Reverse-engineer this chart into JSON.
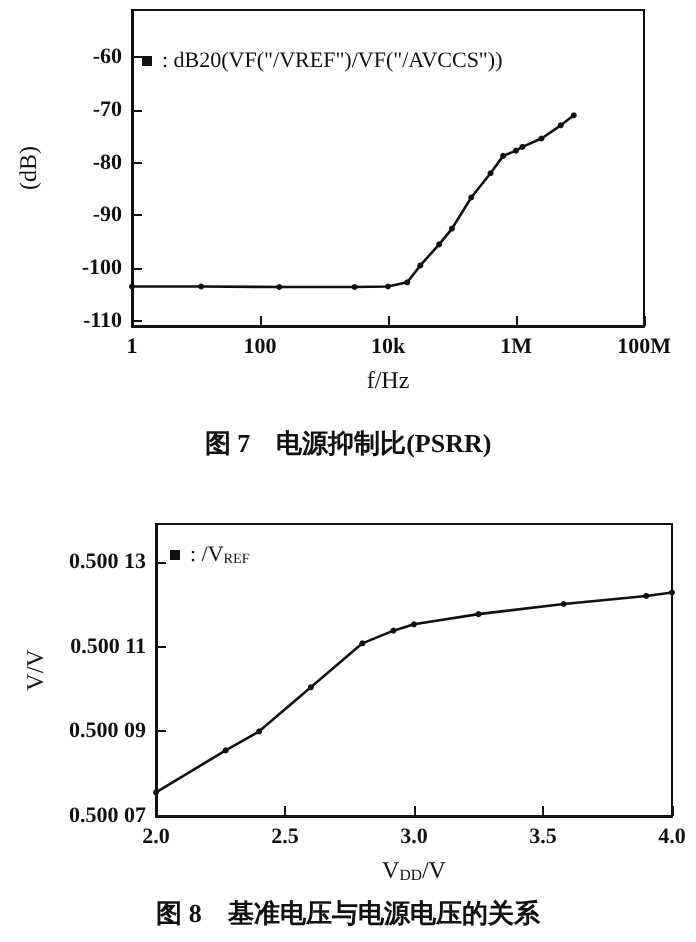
{
  "chart_data": [
    {
      "type": "line",
      "title": "图 7　电源抑制比(PSRR)",
      "xlabel": "f/Hz",
      "ylabel": "(dB)",
      "log": "x",
      "legend": "top left",
      "grid": false,
      "marker": "circle",
      "line_style": "solid",
      "xlim": [
        1,
        100000000
      ],
      "xticks": [
        1,
        100,
        {
          "value": 10000,
          "label": "10k"
        },
        {
          "value": 1000000,
          "label": "1M"
        },
        {
          "value": 100000000,
          "label": "100M"
        }
      ],
      "ylim": [
        -111,
        -51
      ],
      "yticks": [
        -110,
        -100,
        -90,
        -80,
        -70,
        -60
      ],
      "series": [
        {
          "name": ": dB20(VF(\"/VREF\")/VF(\"/AVCCS\"))",
          "color": "#111111",
          "x": [
            1,
            12,
            200,
            3000,
            10000,
            20000,
            32000,
            63000,
            100000,
            200000,
            400000,
            630000,
            1000000,
            1260000,
            2500000,
            5000000,
            8000000
          ],
          "values": [
            -103.5,
            -103.5,
            -103.6,
            -103.6,
            -103.5,
            -102.7,
            -99.5,
            -95.5,
            -92.5,
            -86.6,
            -82,
            -78.7,
            -77.7,
            -77,
            -75.4,
            -72.9,
            -71
          ]
        }
      ]
    },
    {
      "type": "line",
      "title": "图 8　基准电压与电源电压的关系",
      "xlabel": "V$_{DD}$/V",
      "ylabel": "V/V",
      "legend": "top left",
      "grid": false,
      "marker": "circle",
      "line_style": "solid",
      "xlim": [
        2.0,
        4.0
      ],
      "xticks": [
        {
          "value": 2,
          "label": "2.0"
        },
        2.5,
        {
          "value": 3,
          "label": "3.0"
        },
        3.5,
        {
          "value": 4,
          "label": "4.0"
        }
      ],
      "ylim": [
        0.50007,
        0.500139
      ],
      "yticks": [
        0.50007,
        0.50009,
        0.50011,
        0.50013
      ],
      "series": [
        {
          "name": ": /V$_{REF}$",
          "color": "#111111",
          "x": [
            2.0,
            2.27,
            2.4,
            2.6,
            2.8,
            2.92,
            3.0,
            3.25,
            3.58,
            3.9,
            4.0
          ],
          "values": [
            0.5000756,
            0.5000855,
            0.50009,
            0.5001004,
            0.5001108,
            0.5001138,
            0.5001153,
            0.5001177,
            0.5001201,
            0.500122,
            0.5001228
          ]
        }
      ]
    }
  ]
}
